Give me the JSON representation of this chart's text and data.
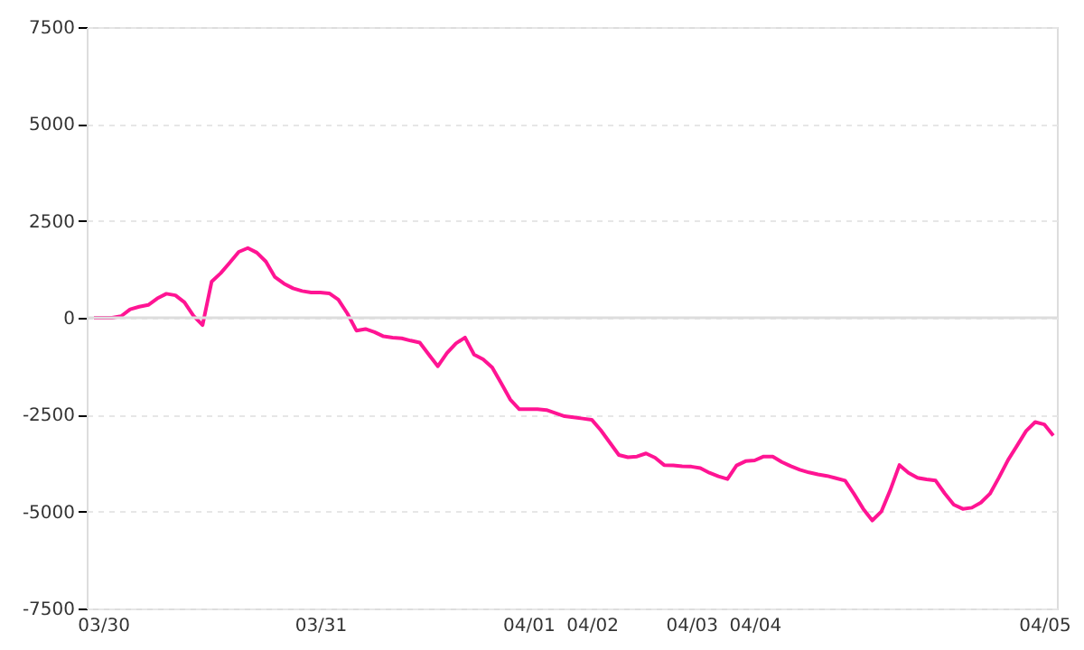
{
  "chart_data": {
    "type": "line",
    "categories": [
      null,
      "03/30",
      null,
      null,
      null,
      null,
      null,
      null,
      null,
      null,
      null,
      null,
      null,
      null,
      null,
      null,
      null,
      null,
      null,
      null,
      null,
      null,
      null,
      null,
      null,
      "03/31",
      null,
      null,
      null,
      null,
      null,
      null,
      null,
      null,
      null,
      null,
      null,
      null,
      null,
      null,
      null,
      null,
      null,
      null,
      null,
      null,
      null,
      null,
      "04/01",
      null,
      null,
      null,
      null,
      null,
      null,
      "04/02",
      null,
      null,
      null,
      null,
      null,
      null,
      null,
      null,
      null,
      null,
      "04/03",
      null,
      null,
      null,
      null,
      null,
      null,
      "04/04",
      null,
      null,
      null,
      null,
      null,
      null,
      null,
      null,
      null,
      null,
      null,
      null,
      null,
      null,
      null,
      null,
      null,
      null,
      null,
      null,
      null,
      null,
      null,
      null,
      null,
      null,
      null,
      null,
      null,
      null,
      null,
      "04/05",
      null
    ],
    "series": [
      {
        "color": "#ff1493",
        "values": [
          0,
          0,
          0,
          40,
          220,
          285,
          330,
          500,
          620,
          580,
          400,
          50,
          -190,
          930,
          1150,
          1420,
          1700,
          1800,
          1680,
          1450,
          1050,
          880,
          760,
          690,
          650,
          650,
          630,
          470,
          110,
          -330,
          -290,
          -370,
          -480,
          -510,
          -530,
          -590,
          -640,
          -950,
          -1250,
          -910,
          -660,
          -510,
          -950,
          -1070,
          -1280,
          -1690,
          -2110,
          -2360,
          -2360,
          -2360,
          -2380,
          -2460,
          -2540,
          -2570,
          -2600,
          -2630,
          -2900,
          -3220,
          -3540,
          -3600,
          -3580,
          -3500,
          -3610,
          -3800,
          -3810,
          -3830,
          -3840,
          -3880,
          -4000,
          -4090,
          -4160,
          -3810,
          -3700,
          -3680,
          -3580,
          -3580,
          -3720,
          -3830,
          -3920,
          -3990,
          -4040,
          -4080,
          -4140,
          -4200,
          -4550,
          -4930,
          -5230,
          -5000,
          -4440,
          -3800,
          -4000,
          -4130,
          -4170,
          -4200,
          -4530,
          -4820,
          -4930,
          -4900,
          -4770,
          -4540,
          -4120,
          -3670,
          -3300,
          -2920,
          -2690,
          -2750,
          -3040
        ]
      }
    ],
    "ylim": [
      -7500,
      7500
    ],
    "yticks": [
      -7500,
      -5000,
      -2500,
      0,
      2500,
      5000,
      7500
    ],
    "grid": "y",
    "marker": "none",
    "line_style": "solid",
    "ref_lines": [
      {
        "axis": "y",
        "value": 0,
        "color": "#dddddd",
        "line_style": "solid"
      }
    ]
  }
}
